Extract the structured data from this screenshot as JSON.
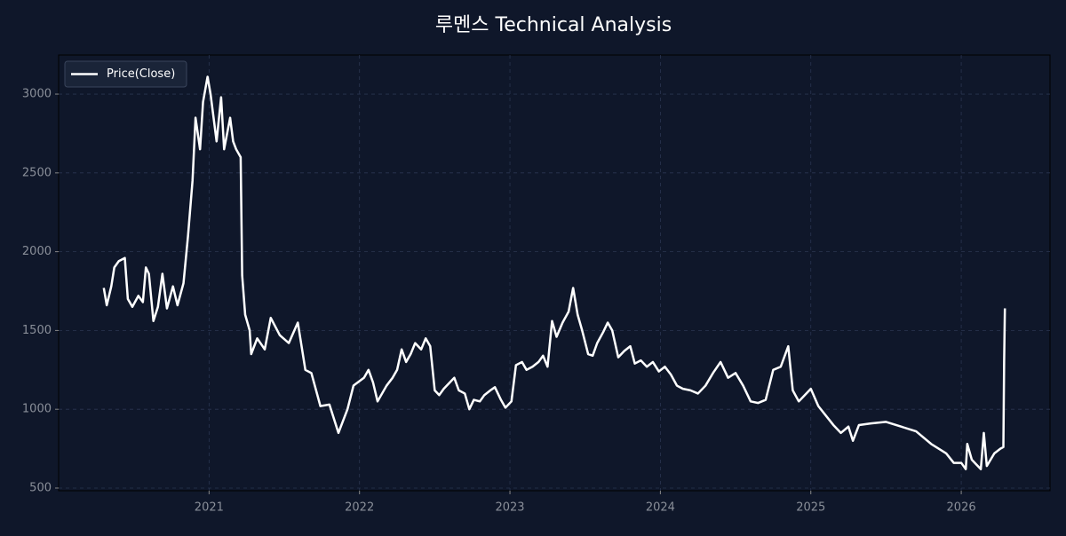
{
  "chart_data": {
    "type": "line",
    "title": "루멘스 Technical Analysis",
    "x": [
      2020.3,
      2020.32,
      2020.35,
      2020.37,
      2020.4,
      2020.44,
      2020.46,
      2020.49,
      2020.53,
      2020.56,
      2020.58,
      2020.6,
      2020.63,
      2020.66,
      2020.69,
      2020.72,
      2020.76,
      2020.79,
      2020.83,
      2020.86,
      2020.89,
      2020.91,
      2020.94,
      2020.96,
      2020.99,
      2021.01,
      2021.05,
      2021.08,
      2021.1,
      2021.14,
      2021.16,
      2021.18,
      2021.21,
      2021.22,
      2021.24,
      2021.27,
      2021.28,
      2021.32,
      2021.37,
      2021.41,
      2021.47,
      2021.53,
      2021.59,
      2021.64,
      2021.68,
      2021.74,
      2021.8,
      2021.86,
      2021.92,
      2021.96,
      2022.03,
      2022.06,
      2022.09,
      2022.12,
      2022.15,
      2022.18,
      2022.22,
      2022.25,
      2022.28,
      2022.31,
      2022.34,
      2022.37,
      2022.41,
      2022.44,
      2022.47,
      2022.5,
      2022.53,
      2022.56,
      2022.6,
      2022.63,
      2022.66,
      2022.7,
      2022.73,
      2022.76,
      2022.8,
      2022.83,
      2022.87,
      2022.9,
      2022.94,
      2022.97,
      2023.01,
      2023.04,
      2023.08,
      2023.11,
      2023.15,
      2023.19,
      2023.22,
      2023.25,
      2023.28,
      2023.31,
      2023.35,
      2023.39,
      2023.42,
      2023.45,
      2023.48,
      2023.52,
      2023.55,
      2023.58,
      2023.62,
      2023.65,
      2023.68,
      2023.72,
      2023.76,
      2023.8,
      2023.83,
      2023.87,
      2023.91,
      2023.95,
      2023.99,
      2024.03,
      2024.07,
      2024.11,
      2024.15,
      2024.2,
      2024.25,
      2024.3,
      2024.35,
      2024.4,
      2024.45,
      2024.5,
      2024.55,
      2024.6,
      2024.65,
      2024.7,
      2024.75,
      2024.8,
      2024.85,
      2024.88,
      2024.92,
      2024.96,
      2025.0,
      2025.05,
      2025.1,
      2025.15,
      2025.2,
      2025.25,
      2025.28,
      2025.32,
      2025.4,
      2025.5,
      2025.6,
      2025.7,
      2025.8,
      2025.9,
      2025.95,
      2026.0,
      2026.03,
      2026.04,
      2026.07,
      2026.1,
      2026.13,
      2026.15,
      2026.17,
      2026.22,
      2026.26,
      2026.28,
      2026.285,
      2026.29
    ],
    "series": [
      {
        "name": "Price(Close)",
        "color": "#ffffff",
        "values": [
          1770,
          1660,
          1780,
          1900,
          1940,
          1960,
          1700,
          1650,
          1720,
          1680,
          1900,
          1860,
          1560,
          1650,
          1860,
          1640,
          1780,
          1660,
          1800,
          2100,
          2450,
          2850,
          2650,
          2950,
          3110,
          3000,
          2700,
          2980,
          2650,
          2850,
          2700,
          2650,
          2600,
          1850,
          1600,
          1500,
          1350,
          1450,
          1380,
          1580,
          1470,
          1420,
          1550,
          1250,
          1230,
          1020,
          1030,
          850,
          1000,
          1150,
          1200,
          1250,
          1170,
          1050,
          1100,
          1150,
          1200,
          1250,
          1380,
          1300,
          1350,
          1420,
          1380,
          1450,
          1400,
          1120,
          1090,
          1130,
          1170,
          1200,
          1120,
          1100,
          1000,
          1060,
          1050,
          1090,
          1120,
          1140,
          1060,
          1010,
          1050,
          1280,
          1300,
          1250,
          1270,
          1300,
          1340,
          1270,
          1560,
          1460,
          1550,
          1620,
          1770,
          1600,
          1500,
          1350,
          1340,
          1420,
          1490,
          1550,
          1500,
          1330,
          1370,
          1400,
          1290,
          1310,
          1270,
          1300,
          1240,
          1270,
          1220,
          1150,
          1130,
          1120,
          1100,
          1150,
          1230,
          1300,
          1200,
          1230,
          1150,
          1050,
          1040,
          1060,
          1250,
          1270,
          1400,
          1120,
          1050,
          1090,
          1130,
          1020,
          960,
          900,
          850,
          890,
          800,
          900,
          910,
          920,
          890,
          860,
          780,
          720,
          660,
          660,
          620,
          780,
          680,
          650,
          620,
          850,
          640,
          720,
          750,
          760,
          1300,
          1640
        ]
      }
    ],
    "xlim": [
      2020.0,
      2026.59
    ],
    "xticks": [
      2021,
      2022,
      2023,
      2024,
      2025,
      2026
    ],
    "ylim": [
      483,
      3248
    ],
    "yticks": [
      500,
      1000,
      1500,
      2000,
      2500,
      3000
    ],
    "grid": true,
    "legend": "upper left"
  }
}
